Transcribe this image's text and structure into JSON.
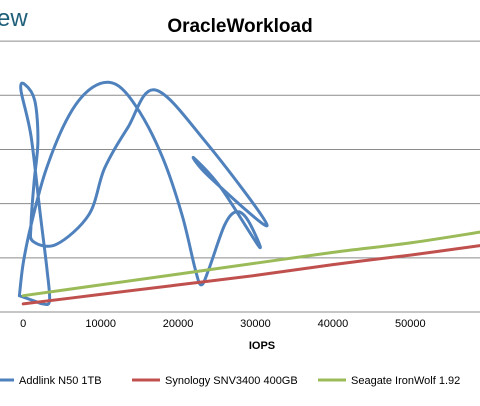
{
  "header": {
    "logo_fragment": "ew"
  },
  "chart_data": {
    "type": "line",
    "title": "OracleWorkload",
    "xlabel": "IOPS",
    "ylabel": "",
    "xlim": [
      -3000,
      59000
    ],
    "ylim": [
      0,
      11
    ],
    "x_ticks": [
      0,
      10000,
      20000,
      30000,
      40000,
      50000
    ],
    "x_tick_labels": [
      "0",
      "10000",
      "20000",
      "30000",
      "40000",
      "50000"
    ],
    "y_ticks": [
      0,
      2,
      4,
      6,
      8,
      10
    ],
    "grid": true,
    "legend_position": "bottom",
    "series": [
      {
        "name": "Addlink N50 1TB",
        "color": "#4f81bd",
        "points": [
          [
            -500,
            0.6
          ],
          [
            1500,
            0.4
          ],
          [
            2500,
            0.3
          ],
          [
            3400,
            0.4
          ],
          [
            3100,
            1.5
          ],
          [
            2200,
            3.6
          ],
          [
            1000,
            6.5
          ],
          [
            -300,
            8.2
          ],
          [
            200,
            8.4
          ],
          [
            1500,
            7.8
          ],
          [
            1900,
            6.3
          ],
          [
            1400,
            4.8
          ],
          [
            1000,
            3.2
          ],
          [
            1300,
            2.6
          ],
          [
            4300,
            2.5
          ],
          [
            8500,
            3.6
          ],
          [
            10500,
            5.3
          ],
          [
            13500,
            6.8
          ],
          [
            17000,
            8.2
          ],
          [
            23500,
            6.3
          ],
          [
            31500,
            3.2
          ],
          [
            24000,
            5.0
          ],
          [
            22000,
            5.7
          ],
          [
            25500,
            4.6
          ],
          [
            30500,
            2.4
          ],
          [
            29000,
            3.4
          ],
          [
            27500,
            3.7
          ],
          [
            26000,
            3.2
          ],
          [
            24000,
            1.6
          ],
          [
            23000,
            1.0
          ],
          [
            22200,
            1.6
          ],
          [
            20500,
            3.6
          ],
          [
            18000,
            5.7
          ],
          [
            15000,
            7.4
          ],
          [
            12000,
            8.4
          ],
          [
            9000,
            8.3
          ],
          [
            6000,
            7.3
          ],
          [
            3000,
            5.3
          ],
          [
            1000,
            3.2
          ],
          [
            0,
            1.8
          ],
          [
            -500,
            0.6
          ]
        ]
      },
      {
        "name": "Synology SNV3400 400GB",
        "color": "#c0504d",
        "points": [
          [
            0,
            0.3
          ],
          [
            10000,
            0.65
          ],
          [
            20000,
            1.0
          ],
          [
            30000,
            1.35
          ],
          [
            40000,
            1.75
          ],
          [
            50000,
            2.1
          ],
          [
            59000,
            2.45
          ]
        ]
      },
      {
        "name": "Seagate IronWolf 1.92",
        "color": "#9bbb59",
        "points": [
          [
            0,
            0.6
          ],
          [
            10000,
            1.0
          ],
          [
            20000,
            1.4
          ],
          [
            30000,
            1.8
          ],
          [
            40000,
            2.2
          ],
          [
            50000,
            2.55
          ],
          [
            59000,
            2.95
          ]
        ]
      }
    ]
  }
}
